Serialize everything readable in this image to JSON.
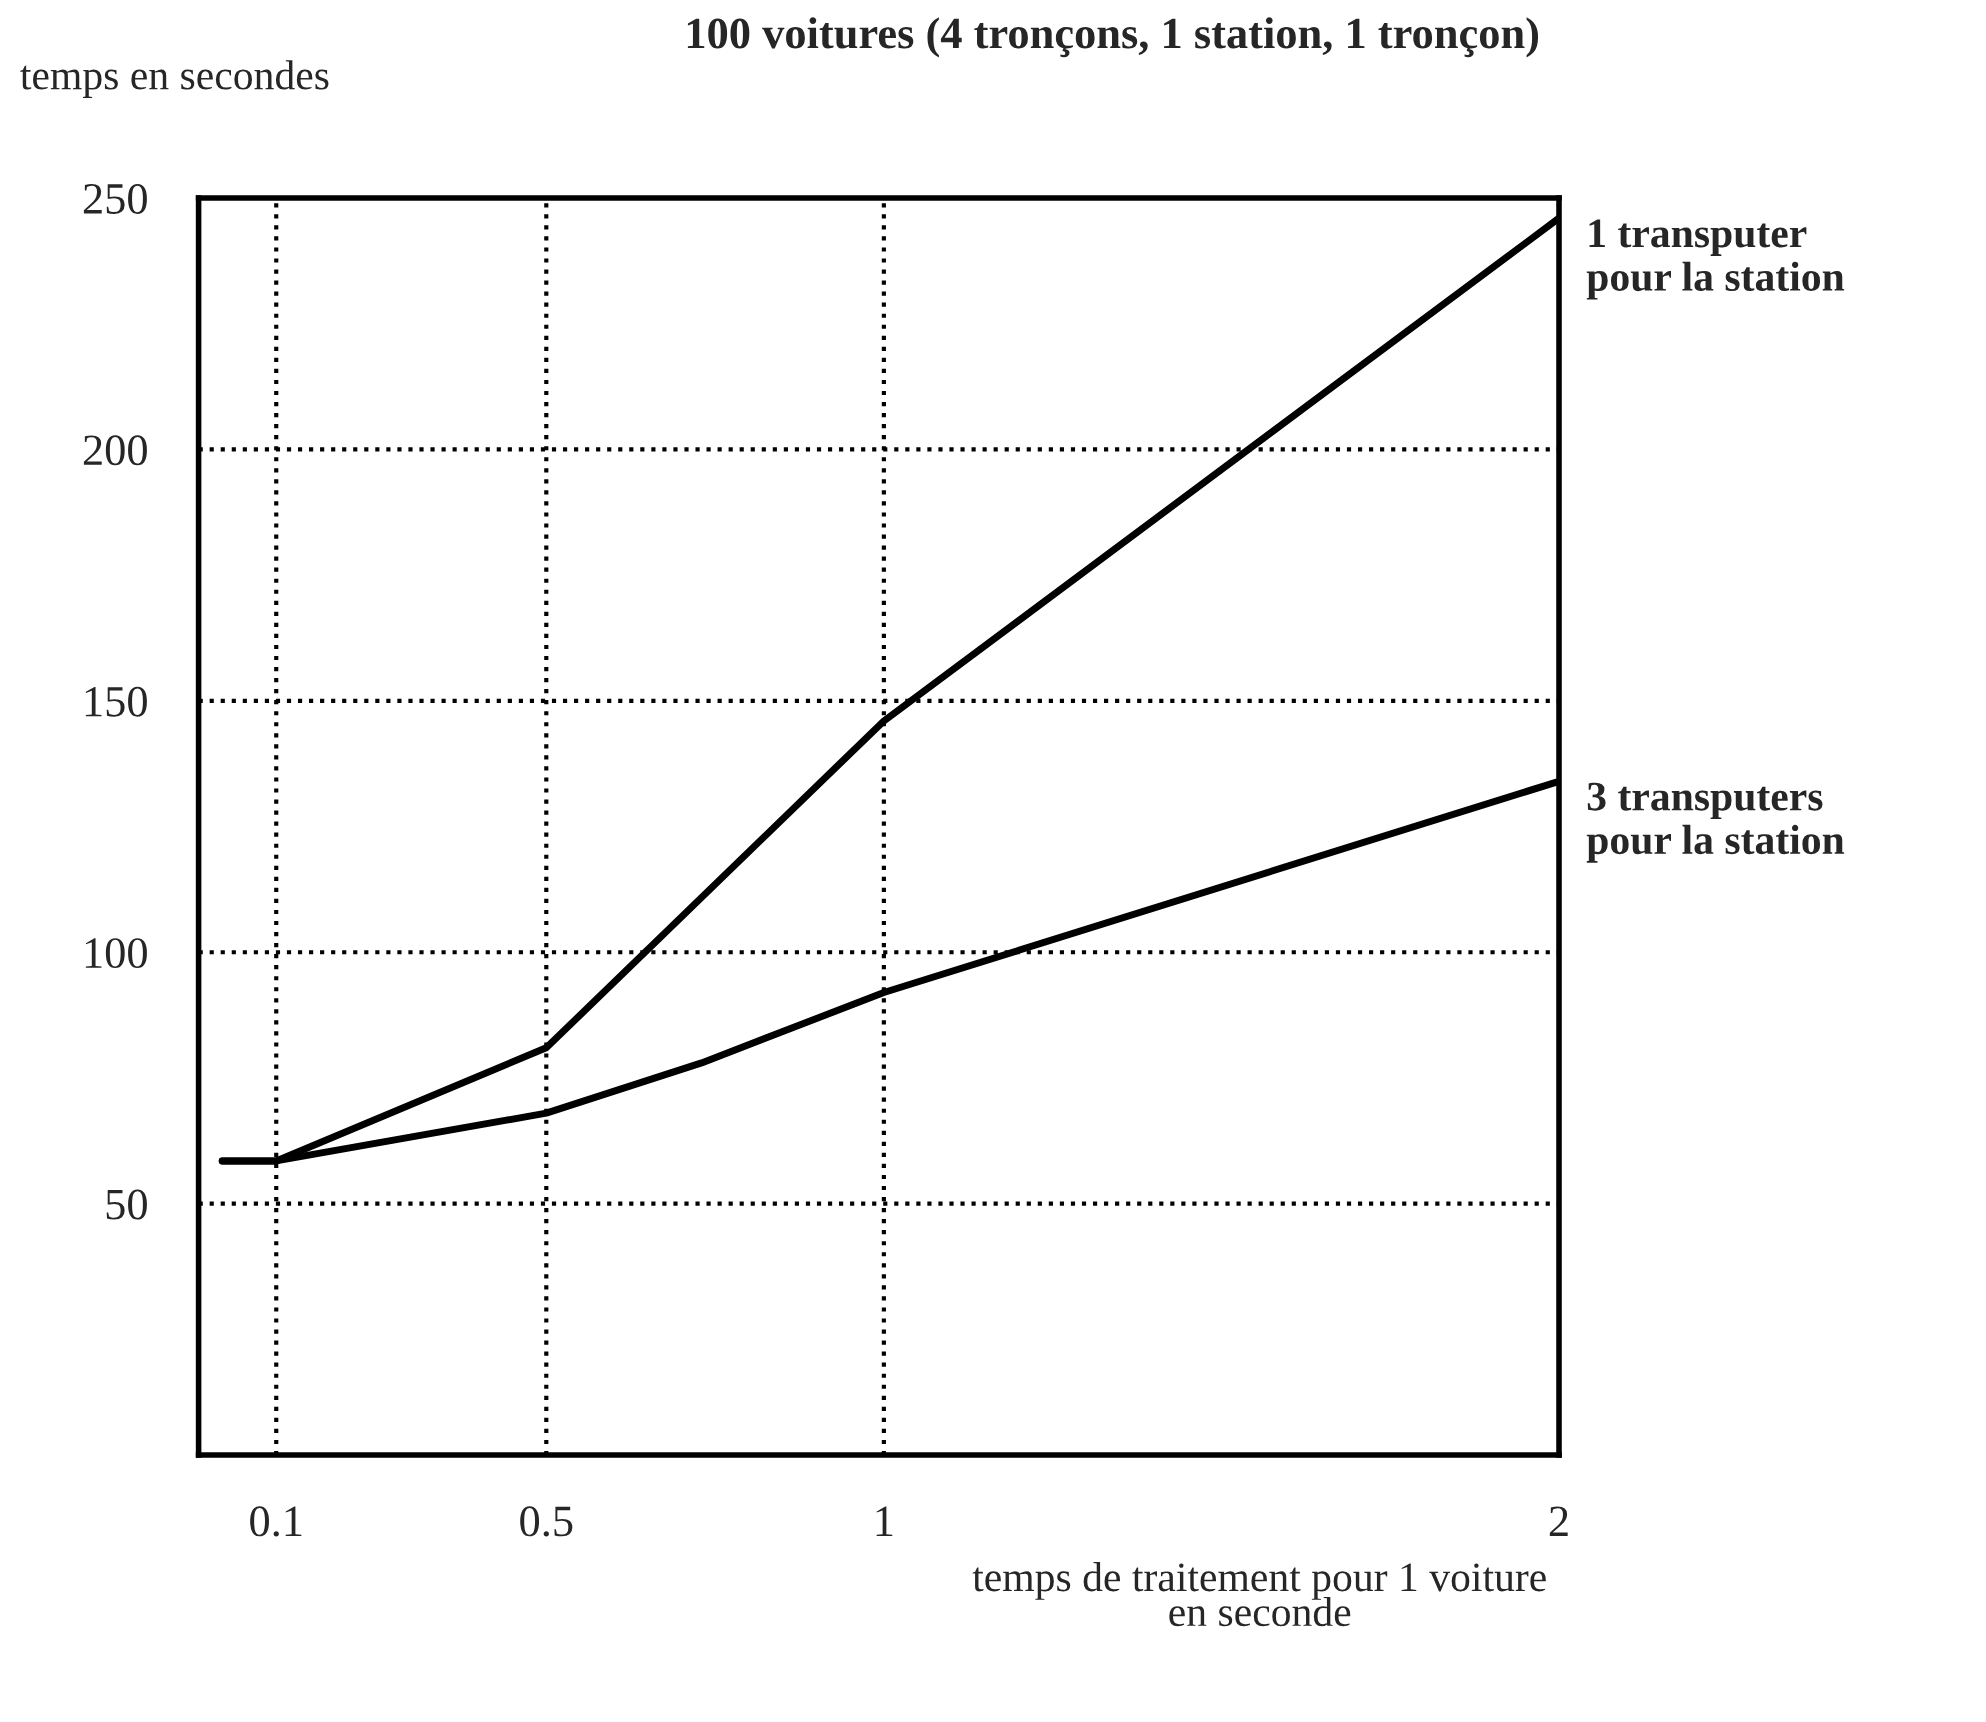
{
  "chart_data": {
    "type": "line",
    "title": "100 voitures (4 tronçons, 1 station, 1 tronçon)",
    "ylabel": "temps en secondes",
    "xlabel": "temps de traitement pour 1 voiture\nen seconde",
    "series": [
      {
        "name": "1 transputer\npour la station",
        "color": "#000000",
        "x": [
          0.02,
          0.1,
          0.5,
          1,
          2
        ],
        "values": [
          58.5,
          58.5,
          81,
          146,
          246
        ]
      },
      {
        "name": "3 transputers\npour la station",
        "color": "#000000",
        "x": [
          0.02,
          0.1,
          0.5,
          0.73,
          1,
          2
        ],
        "values": [
          58.5,
          58.5,
          68,
          78,
          92,
          134
        ]
      }
    ],
    "xlim": [
      -0.015,
      2
    ],
    "xticks": [
      0.1,
      0.5,
      1,
      2
    ],
    "ylim": [
      0,
      250
    ],
    "yticks": [
      50,
      100,
      150,
      200,
      250
    ],
    "grid": true,
    "legend": false,
    "marker": "none",
    "line_style": "solid"
  }
}
